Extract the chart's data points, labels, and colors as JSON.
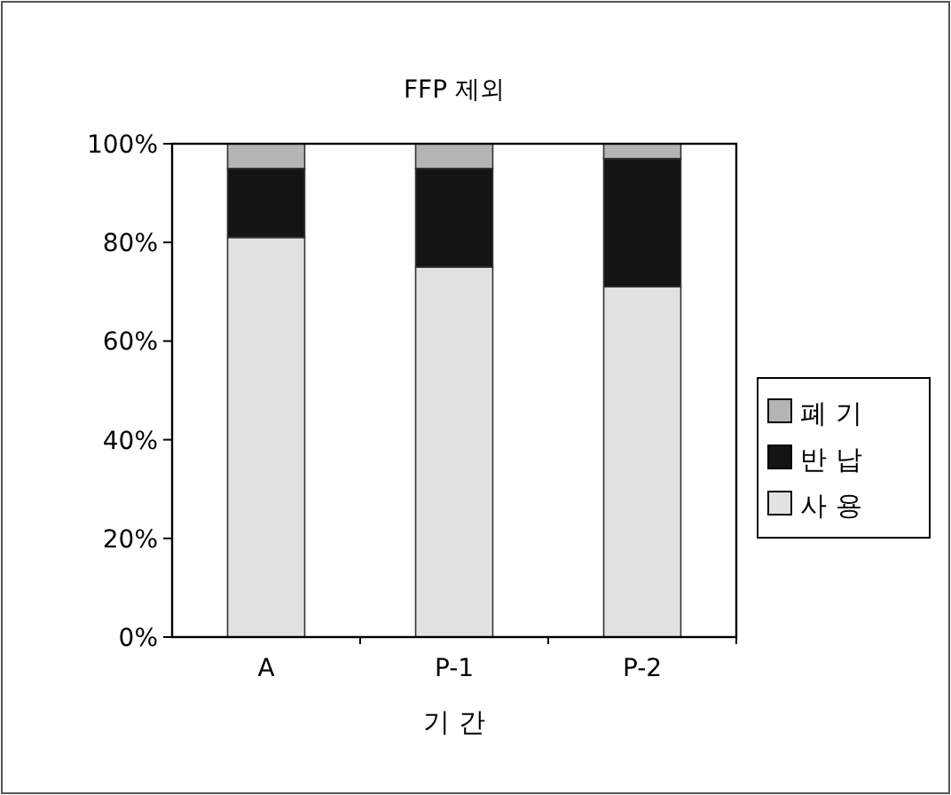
{
  "chart_data": {
    "type": "bar",
    "stacked": true,
    "title": "FFP 제외",
    "xlabel": "기 간",
    "categories": [
      "A",
      "P-1",
      "P-2"
    ],
    "series": [
      {
        "name": "사 용",
        "color": "#e2e2e2",
        "values": [
          81,
          75,
          71
        ]
      },
      {
        "name": "반 납",
        "color": "#141414",
        "values": [
          14,
          20,
          26
        ]
      },
      {
        "name": "폐 기",
        "color": "#b4b4b4",
        "values": [
          5,
          5,
          3
        ]
      }
    ],
    "ylim": [
      0,
      100
    ],
    "yticks": [
      {
        "value": 0,
        "label": "0%"
      },
      {
        "value": 20,
        "label": "20%"
      },
      {
        "value": 40,
        "label": "40%"
      },
      {
        "value": 60,
        "label": "60%"
      },
      {
        "value": 80,
        "label": "80%"
      },
      {
        "value": 100,
        "label": "100%"
      }
    ],
    "legend": "right"
  }
}
